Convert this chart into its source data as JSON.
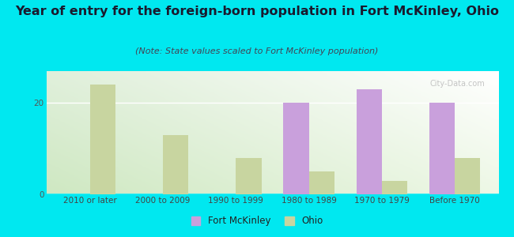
{
  "title": "Year of entry for the foreign-born population in Fort McKinley, Ohio",
  "subtitle": "(Note: State values scaled to Fort McKinley population)",
  "categories": [
    "2010 or later",
    "2000 to 2009",
    "1990 to 1999",
    "1980 to 1989",
    "1970 to 1979",
    "Before 1970"
  ],
  "fort_mckinley": [
    0,
    0,
    0,
    20,
    23,
    20
  ],
  "ohio": [
    24,
    13,
    8,
    5,
    3,
    8
  ],
  "fort_mckinley_color": "#c9a0dc",
  "ohio_color": "#c8d5a0",
  "background_outer": "#00e8f0",
  "background_inner_topleft": "#e8f5e0",
  "background_inner_topright": "#ffffff",
  "background_inner_bottom": "#d8ecd0",
  "ylim": [
    0,
    27
  ],
  "yticks": [
    0,
    20
  ],
  "bar_width": 0.35,
  "title_fontsize": 11.5,
  "subtitle_fontsize": 8,
  "tick_fontsize": 7.5,
  "legend_fontsize": 8.5,
  "watermark": "City-Data.com"
}
